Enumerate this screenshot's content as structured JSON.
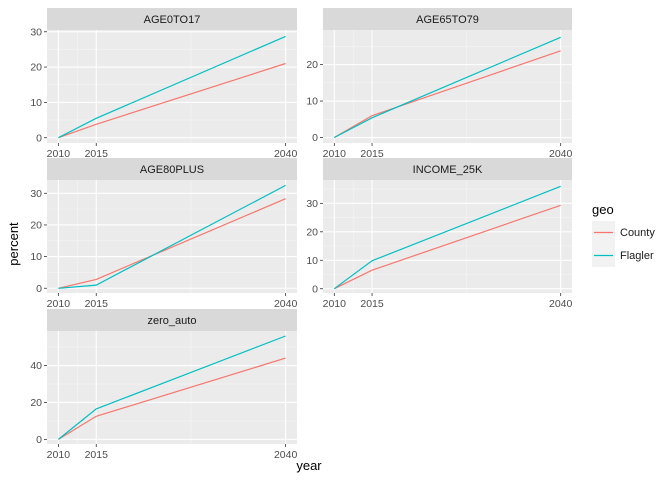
{
  "chart_data": {
    "type": "line",
    "xlabel": "year",
    "ylabel": "percent",
    "x_ticks": [
      2010,
      2015,
      2040
    ],
    "legend": {
      "title": "geo",
      "placement": "right",
      "entries": [
        {
          "name": "County",
          "color": "#F8766D"
        },
        {
          "name": "Flagler",
          "color": "#00BFC4"
        }
      ]
    },
    "panels": [
      {
        "facet": "AGE0TO17",
        "x": [
          2010,
          2015,
          2040
        ],
        "xlim": [
          2008.5,
          2041.5
        ],
        "ylim": [
          -1.5,
          30.5
        ],
        "y_ticks": [
          0,
          10,
          20,
          30
        ],
        "series": [
          {
            "name": "County",
            "values": [
              0,
              3.8,
              21
            ]
          },
          {
            "name": "Flagler",
            "values": [
              0,
              5.5,
              28.7
            ]
          }
        ]
      },
      {
        "facet": "AGE65TO79",
        "x": [
          2010,
          2015,
          2040
        ],
        "xlim": [
          2008.5,
          2041.5
        ],
        "ylim": [
          -1.5,
          29.5
        ],
        "y_ticks": [
          0,
          10,
          20
        ],
        "series": [
          {
            "name": "County",
            "values": [
              0,
              6,
              23.8
            ]
          },
          {
            "name": "Flagler",
            "values": [
              0,
              5.4,
              27.5
            ]
          }
        ]
      },
      {
        "facet": "AGE80PLUS",
        "x": [
          2010,
          2015,
          2040
        ],
        "xlim": [
          2008.5,
          2041.5
        ],
        "ylim": [
          -1.5,
          34.2
        ],
        "y_ticks": [
          0,
          10,
          20,
          30
        ],
        "series": [
          {
            "name": "County",
            "values": [
              0,
              2.8,
              28.3
            ]
          },
          {
            "name": "Flagler",
            "values": [
              0,
              1,
              32.5
            ]
          }
        ]
      },
      {
        "facet": "INCOME_25K",
        "x": [
          2010,
          2015,
          2040
        ],
        "xlim": [
          2008.5,
          2041.5
        ],
        "ylim": [
          -1.5,
          38.2
        ],
        "y_ticks": [
          0,
          10,
          20,
          30
        ],
        "series": [
          {
            "name": "County",
            "values": [
              0,
              6.5,
              29.3
            ]
          },
          {
            "name": "Flagler",
            "values": [
              0,
              9.8,
              36
            ]
          }
        ]
      },
      {
        "facet": "zero_auto",
        "x": [
          2010,
          2015,
          2040
        ],
        "xlim": [
          2008.5,
          2041.5
        ],
        "ylim": [
          -2.5,
          58.7
        ],
        "y_ticks": [
          0,
          20,
          40
        ],
        "series": [
          {
            "name": "County",
            "values": [
              0,
              12.5,
              44
            ]
          },
          {
            "name": "Flagler",
            "values": [
              0,
              16.5,
              56
            ]
          }
        ]
      }
    ]
  }
}
